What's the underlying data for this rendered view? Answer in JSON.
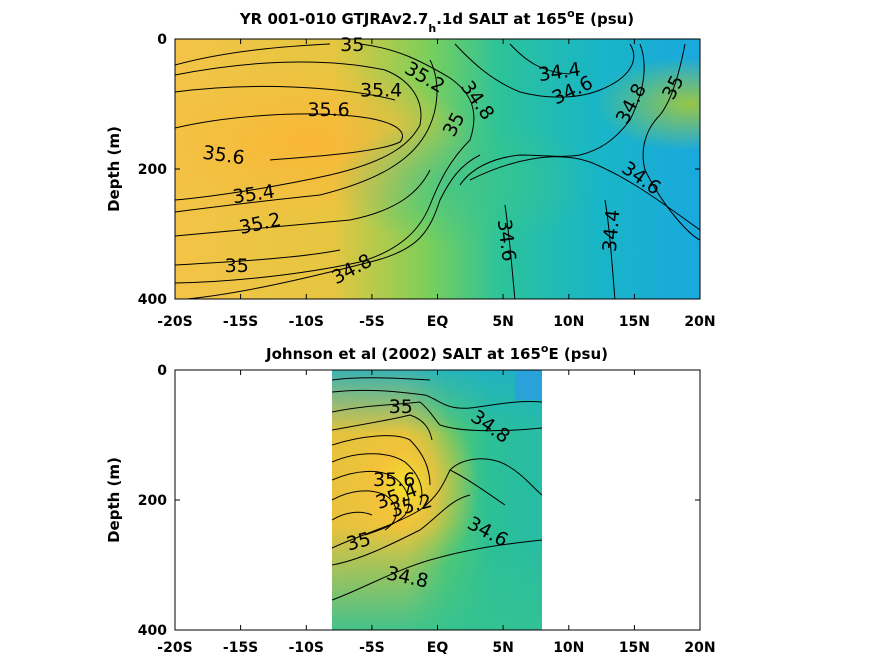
{
  "chart_data": [
    {
      "type": "contour",
      "title_main": "YR 001-010 GTJRAv2.7",
      "title_sub": "h",
      "title_rest": ".1d SALT at 165",
      "title_sup": "o",
      "title_end": "E (psu)",
      "ylabel": "Depth (m)",
      "xlim": [
        -20,
        20
      ],
      "ylim": [
        0,
        400
      ],
      "x_ticks": [
        "-20S",
        "-15S",
        "-10S",
        "-5S",
        "EQ",
        "5N",
        "10N",
        "15N",
        "20N"
      ],
      "y_ticks": [
        "0",
        "200",
        "400"
      ],
      "contour_labels": [
        {
          "text": "35",
          "x": -6.5,
          "y": 10,
          "angle": 0
        },
        {
          "text": "35.2",
          "x": -1.0,
          "y": 60,
          "angle": 30
        },
        {
          "text": "35.4",
          "x": -4.3,
          "y": 80,
          "angle": 0
        },
        {
          "text": "35.6",
          "x": -8.3,
          "y": 110,
          "angle": 0
        },
        {
          "text": "35.6",
          "x": -16.3,
          "y": 180,
          "angle": 8
        },
        {
          "text": "35.4",
          "x": -14.0,
          "y": 240,
          "angle": -8
        },
        {
          "text": "35.2",
          "x": -13.5,
          "y": 285,
          "angle": -12
        },
        {
          "text": "35",
          "x": -15.3,
          "y": 350,
          "angle": 0
        },
        {
          "text": "34.8",
          "x": -6.5,
          "y": 355,
          "angle": -28
        },
        {
          "text": "34.8",
          "x": 3.0,
          "y": 95,
          "angle": 55
        },
        {
          "text": "35",
          "x": 1.3,
          "y": 132,
          "angle": -62
        },
        {
          "text": "34.4",
          "x": 9.3,
          "y": 52,
          "angle": -8
        },
        {
          "text": "34.6",
          "x": 10.3,
          "y": 80,
          "angle": -25
        },
        {
          "text": "34.8",
          "x": 14.8,
          "y": 100,
          "angle": -62
        },
        {
          "text": "35",
          "x": 18.0,
          "y": 75,
          "angle": -62
        },
        {
          "text": "34.6",
          "x": 15.5,
          "y": 215,
          "angle": 35
        },
        {
          "text": "34.6",
          "x": 5.2,
          "y": 310,
          "angle": 83
        },
        {
          "text": "34.4",
          "x": 13.3,
          "y": 295,
          "angle": -85
        }
      ]
    },
    {
      "type": "contour",
      "title_main": "Johnson et al (2002) SALT at 165",
      "title_sup": "o",
      "title_end": "E (psu)",
      "ylabel": "Depth (m)",
      "xlim": [
        -20,
        20
      ],
      "ylim": [
        0,
        400
      ],
      "data_xrange": [
        -8,
        8
      ],
      "x_ticks": [
        "-20S",
        "-15S",
        "-10S",
        "-5S",
        "EQ",
        "5N",
        "10N",
        "15N",
        "20N"
      ],
      "y_ticks": [
        "0",
        "200",
        "400"
      ],
      "contour_labels": [
        {
          "text": "35",
          "x": -2.8,
          "y": 58,
          "angle": 0
        },
        {
          "text": "34.8",
          "x": 4.0,
          "y": 88,
          "angle": 35
        },
        {
          "text": "35.6",
          "x": -3.3,
          "y": 170,
          "angle": 0
        },
        {
          "text": "35.4",
          "x": -3.1,
          "y": 195,
          "angle": -20
        },
        {
          "text": "35.2",
          "x": -2.0,
          "y": 210,
          "angle": -15
        },
        {
          "text": "34.6",
          "x": 3.8,
          "y": 250,
          "angle": 28
        },
        {
          "text": "35",
          "x": -6.0,
          "y": 265,
          "angle": -15
        },
        {
          "text": "34.8",
          "x": -2.3,
          "y": 320,
          "angle": 12
        }
      ]
    }
  ]
}
